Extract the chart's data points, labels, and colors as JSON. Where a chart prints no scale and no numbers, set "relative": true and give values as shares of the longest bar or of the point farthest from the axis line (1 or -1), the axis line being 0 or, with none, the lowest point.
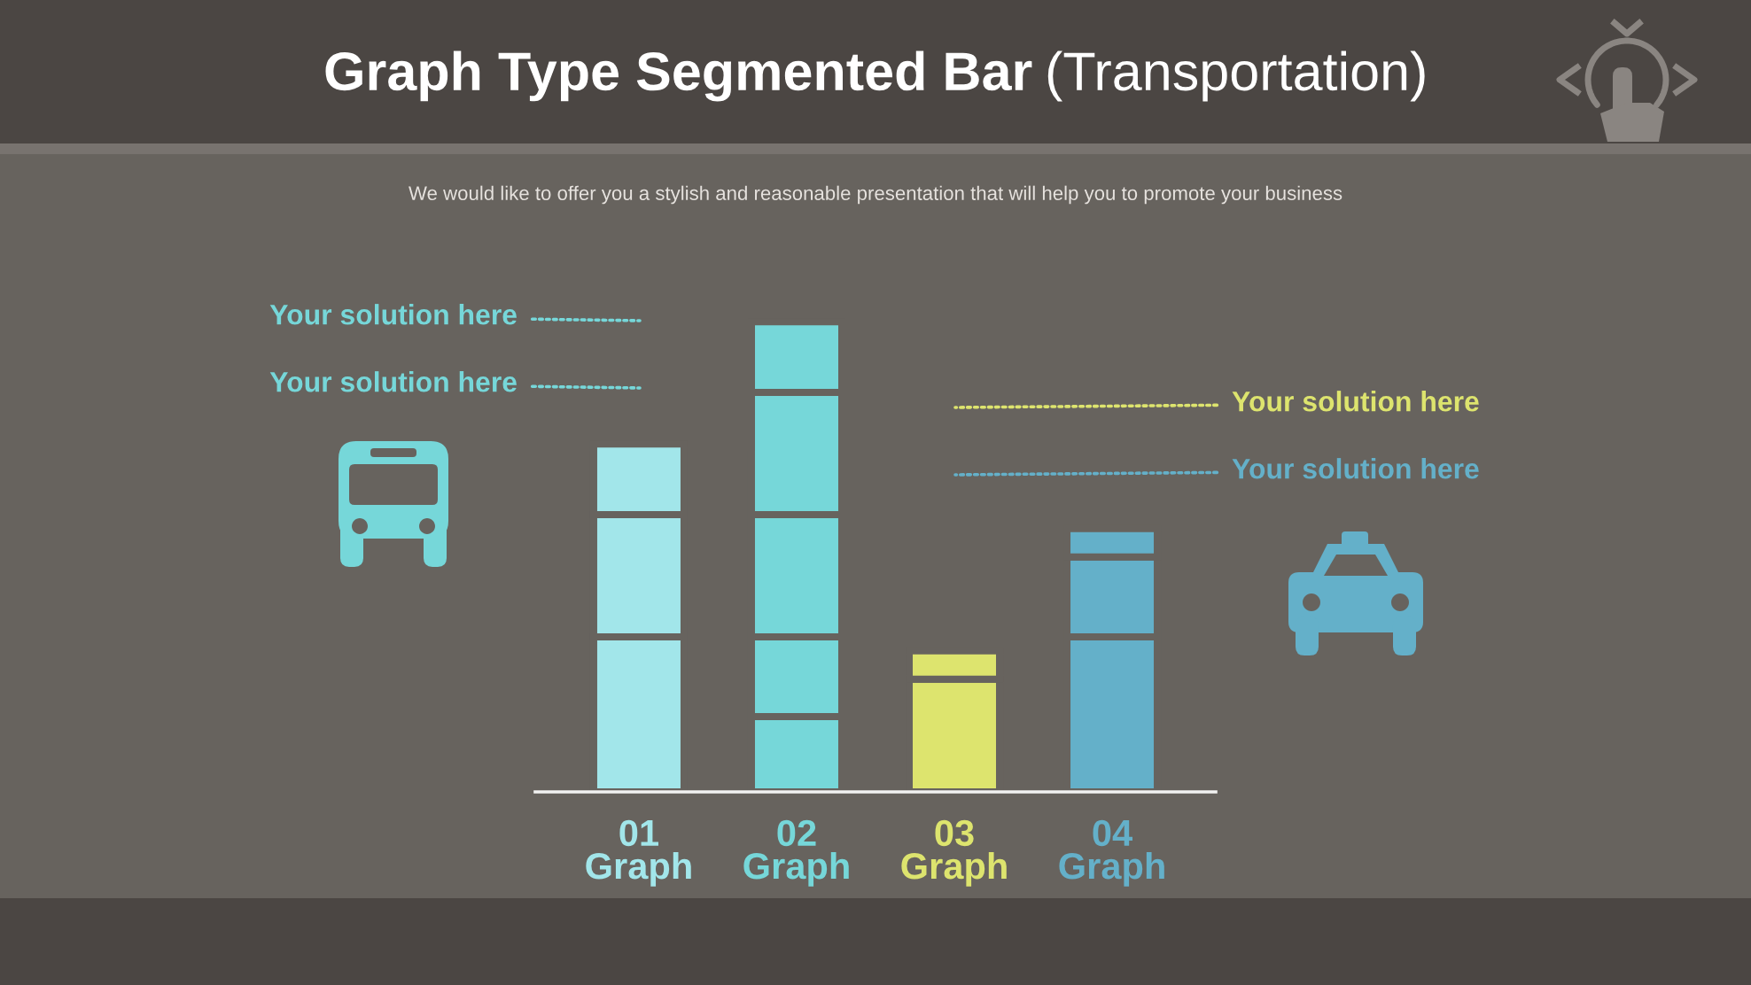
{
  "chart_data": {
    "type": "bar",
    "relative": true,
    "stacked": true,
    "title": "Graph Type Segmented Bar (Transportation)",
    "subtitle": "We would like to offer you a stylish and reasonable presentation that will help you to promote your business",
    "categories": [
      "01\nGraph",
      "02\nGraph",
      "03\nGraph",
      "04\nGraph"
    ],
    "series": [
      {
        "colors": [
          "#a2e6ea",
          "#76d7d9",
          "#dde46e",
          "#64b0c9"
        ],
        "values": [
          0.33,
          0.16,
          0.24,
          0.33
        ]
      },
      {
        "colors": [
          "#a2e6ea",
          "#76d7d9",
          "#dde46e",
          "#64b0c9"
        ],
        "values": [
          0.26,
          0.17,
          0.06,
          0.17
        ]
      },
      {
        "colors": [
          "#a2e6ea",
          "#76d7d9",
          null,
          "#64b0c9"
        ],
        "values": [
          0.15,
          0.26,
          null,
          0.06
        ]
      },
      {
        "colors": [
          null,
          "#76d7d9",
          null,
          null
        ],
        "values": [
          null,
          0.26,
          null,
          null
        ]
      },
      {
        "colors": [
          null,
          "#76d7d9",
          null,
          null
        ],
        "values": [
          null,
          0.15,
          null,
          null
        ]
      }
    ],
    "annotations": [
      "Your solution here",
      "Your solution here",
      "Your solution here",
      "Your solution here"
    ]
  }
}
